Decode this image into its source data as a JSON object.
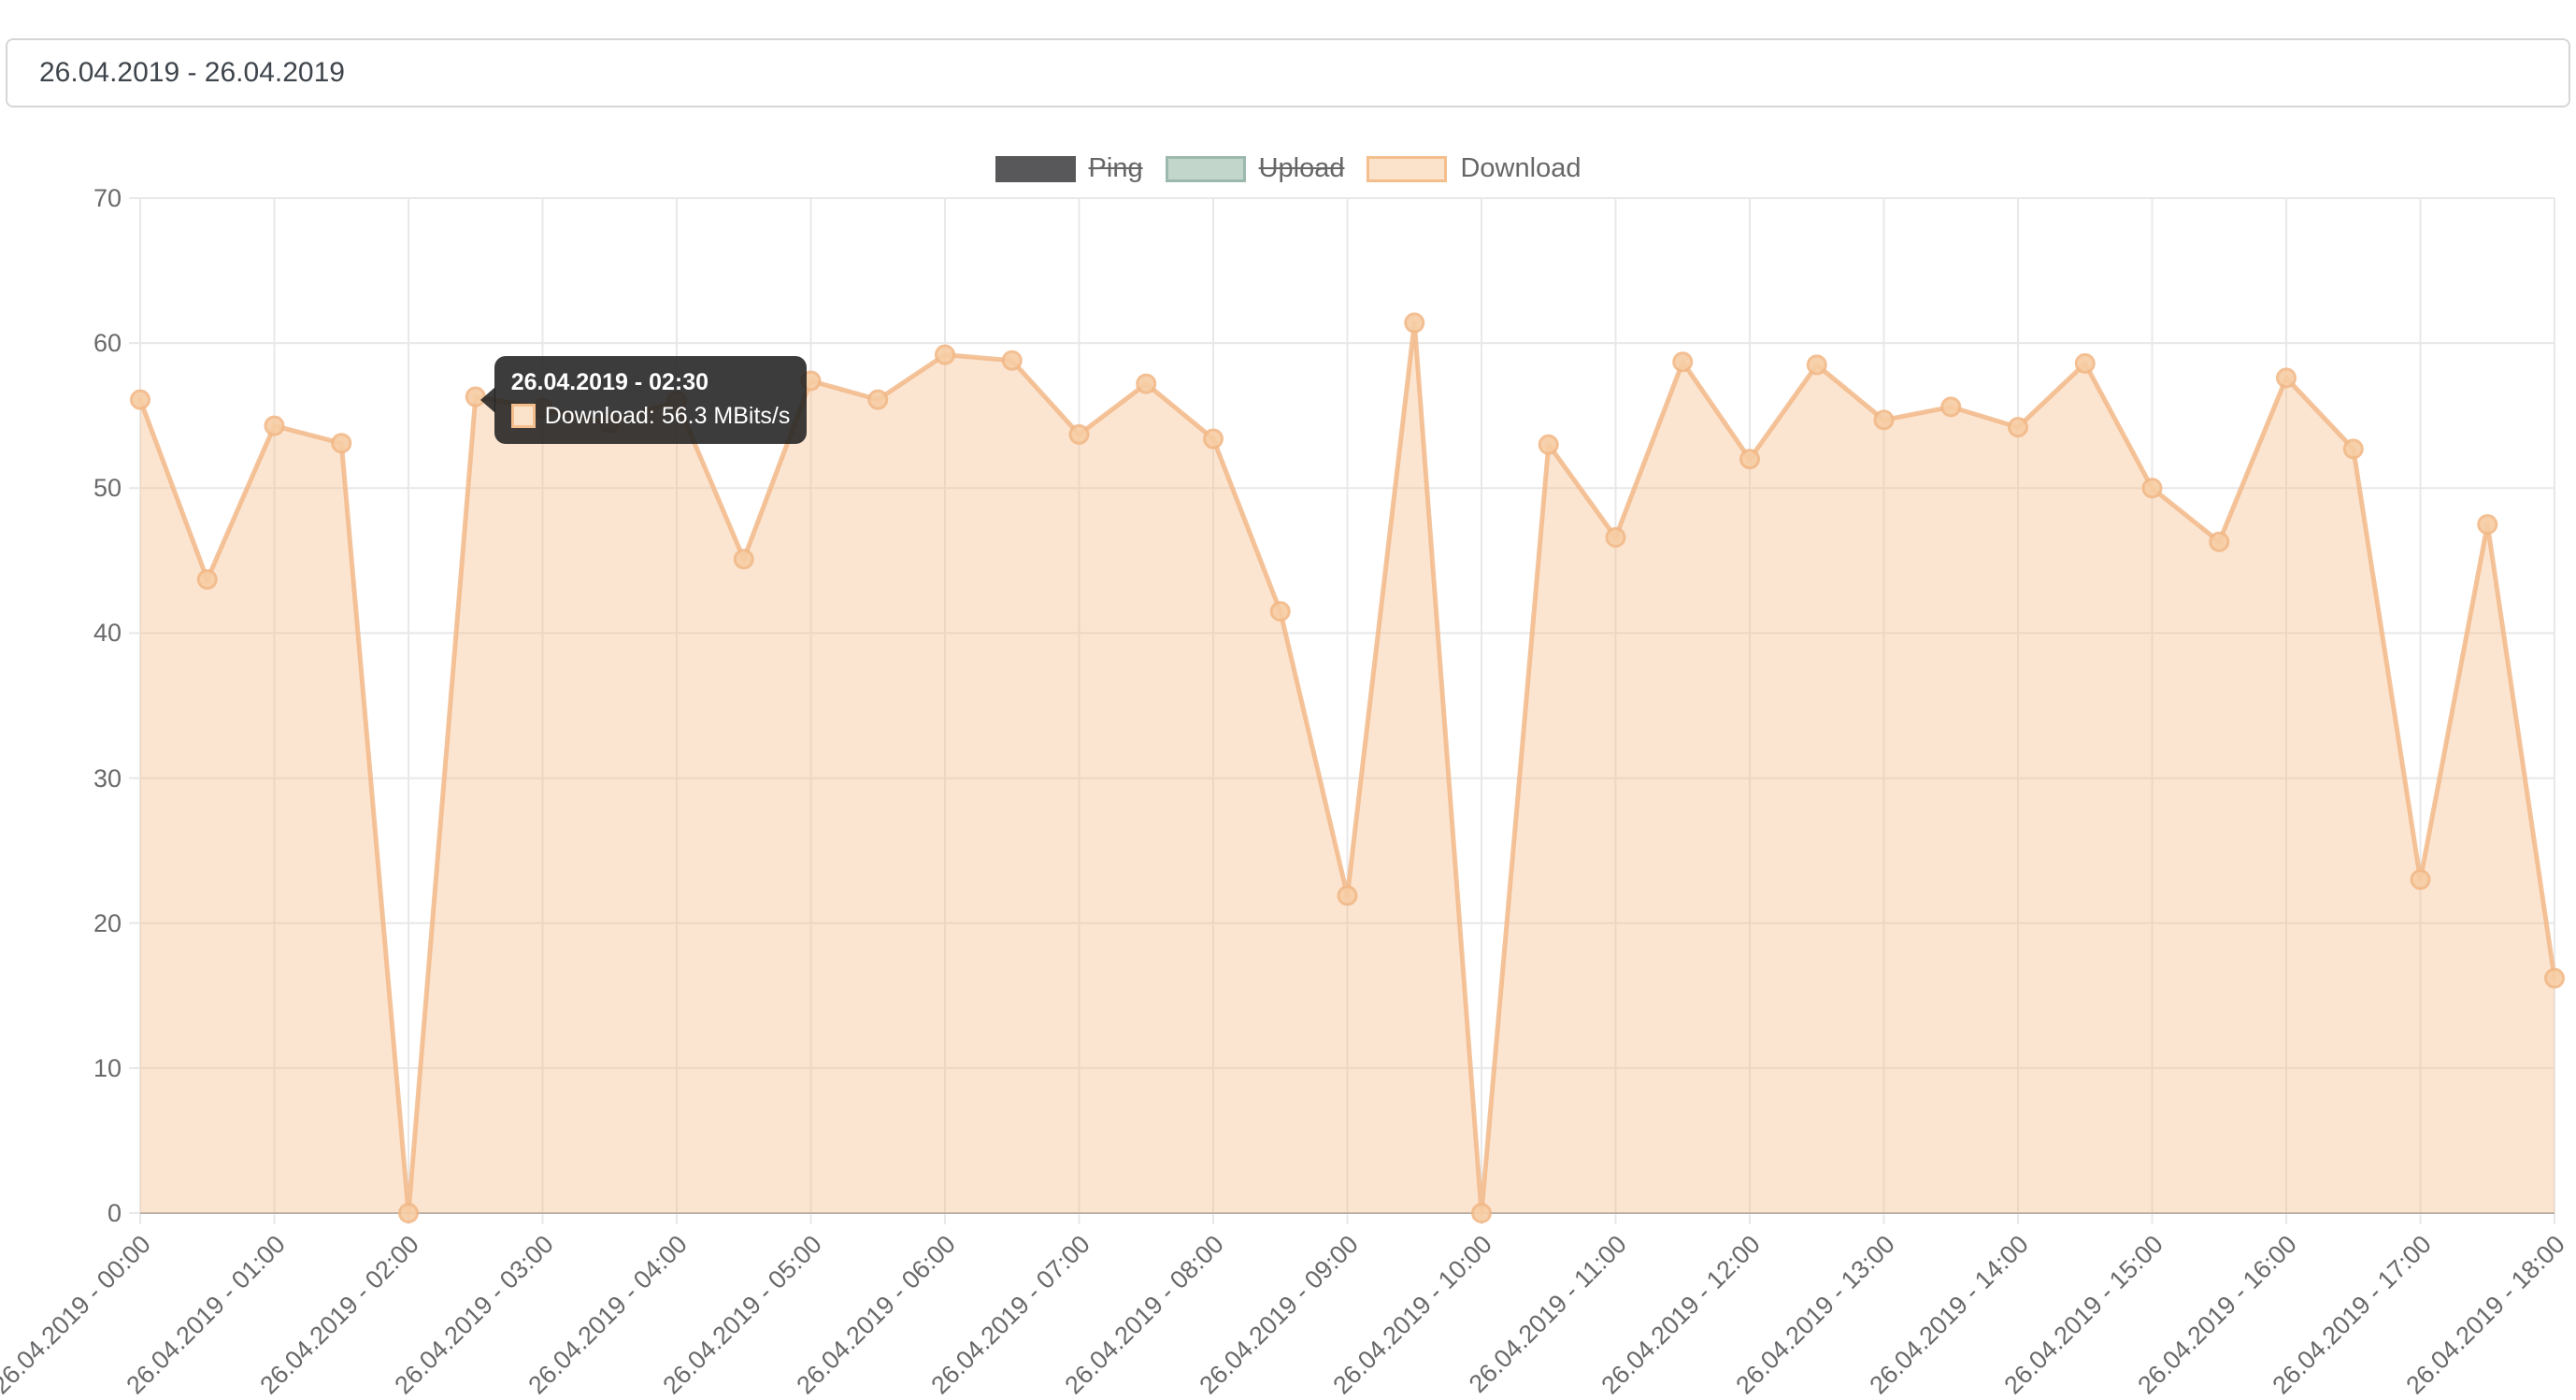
{
  "date_range": {
    "value": "26.04.2019 - 26.04.2019"
  },
  "chart_data": {
    "type": "area",
    "unit": "MBits/s",
    "grid": true,
    "legend_position": "top",
    "ylim": [
      0,
      70
    ],
    "y_ticks": [
      0,
      10,
      20,
      30,
      40,
      50,
      60,
      70
    ],
    "x": [
      "00:00",
      "00:30",
      "01:00",
      "01:30",
      "02:00",
      "02:30",
      "03:00",
      "03:30",
      "04:00",
      "04:30",
      "05:00",
      "05:30",
      "06:00",
      "06:30",
      "07:00",
      "07:30",
      "08:00",
      "08:30",
      "09:00",
      "09:30",
      "10:00",
      "10:30",
      "11:00",
      "11:30",
      "12:00",
      "12:30",
      "13:00",
      "13:30",
      "14:00",
      "14:30",
      "15:00",
      "15:30",
      "16:00",
      "16:30",
      "17:00",
      "17:30",
      "18:00"
    ],
    "x_axis_labels": [
      "26.04.2019 - 00:00",
      "26.04.2019 - 01:00",
      "26.04.2019 - 02:00",
      "26.04.2019 - 03:00",
      "26.04.2019 - 04:00",
      "26.04.2019 - 05:00",
      "26.04.2019 - 06:00",
      "26.04.2019 - 07:00",
      "26.04.2019 - 08:00",
      "26.04.2019 - 09:00",
      "26.04.2019 - 10:00",
      "26.04.2019 - 11:00",
      "26.04.2019 - 12:00",
      "26.04.2019 - 13:00",
      "26.04.2019 - 14:00",
      "26.04.2019 - 15:00",
      "26.04.2019 - 16:00",
      "26.04.2019 - 17:00",
      "26.04.2019 - 18:00"
    ],
    "series": [
      {
        "name": "Ping",
        "hidden": true,
        "swatch_fill": "#58585a",
        "swatch_border": "#58585a",
        "values": []
      },
      {
        "name": "Upload",
        "hidden": true,
        "swatch_fill": "#c2d6cb",
        "swatch_border": "#9db9ad",
        "values": []
      },
      {
        "name": "Download",
        "hidden": false,
        "swatch_fill": "#fbe3cb",
        "swatch_border": "#f4be8d",
        "line_color": "#f2b988",
        "marker_fill": "#f7cda4",
        "fill_color": "rgba(244,190,141,0.4)",
        "values": [
          56.1,
          43.7,
          54.3,
          53.1,
          0,
          56.3,
          55.5,
          54.5,
          56.0,
          45.1,
          57.4,
          56.1,
          59.2,
          58.8,
          53.7,
          57.2,
          53.4,
          41.5,
          21.9,
          61.4,
          0,
          53.0,
          46.6,
          58.7,
          52.0,
          58.5,
          54.7,
          55.6,
          54.2,
          58.6,
          50.0,
          46.3,
          57.6,
          52.7,
          23.0,
          47.5,
          16.2
        ]
      }
    ]
  },
  "tooltip": {
    "title": "26.04.2019 - 02:30",
    "label": "Download: 56.3 MBits/s",
    "series": "Download",
    "value": 56.3,
    "point_index": 5
  },
  "colors": {
    "grid": "#e8e8e8",
    "axis_line": "#b0b0b0",
    "tick_text": "#69696c",
    "legend_text": "#666666",
    "tooltip_bg": "rgba(33,33,33,0.88)"
  }
}
